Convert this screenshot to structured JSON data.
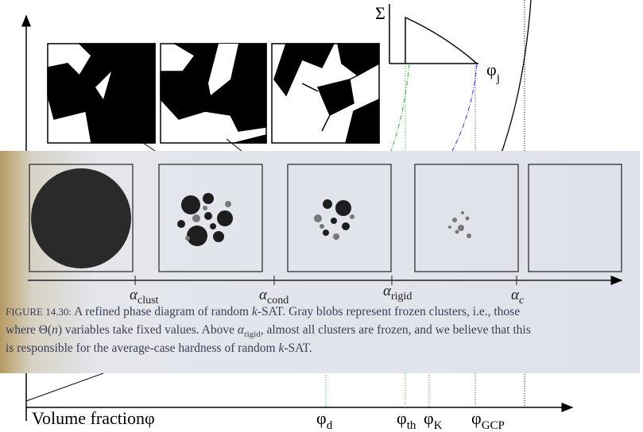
{
  "slide": {
    "sigma": "Σ",
    "phi_j": {
      "symbol": "φ",
      "sub": "j"
    },
    "x_axis_label": "Volume fractionφ",
    "markers": [
      {
        "symbol": "φ",
        "sub": "d"
      },
      {
        "symbol": "φ",
        "sub": "th"
      },
      {
        "symbol": "φ",
        "sub": "K"
      },
      {
        "symbol": "φ",
        "sub": "GCP"
      }
    ]
  },
  "photo": {
    "alphas": [
      {
        "symbol": "α",
        "sub": "clust"
      },
      {
        "symbol": "α",
        "sub": "cond"
      },
      {
        "symbol": "α",
        "sub": "rigid"
      },
      {
        "symbol": "α",
        "sub": "c"
      }
    ],
    "caption": {
      "label": "FIGURE 14.30:",
      "line1": [
        "A refined phase diagram of random ",
        "k",
        "-SAT. Gray blobs represent frozen clusters, i.e., those"
      ],
      "line2": [
        "where Θ(",
        "n",
        ") variables take fixed values. Above ",
        "α",
        "rigid",
        ", almost all clusters are frozen, and we believe that this"
      ],
      "line3": [
        "is responsible for the average-case hardness of random ",
        "k",
        "-SAT."
      ]
    }
  }
}
